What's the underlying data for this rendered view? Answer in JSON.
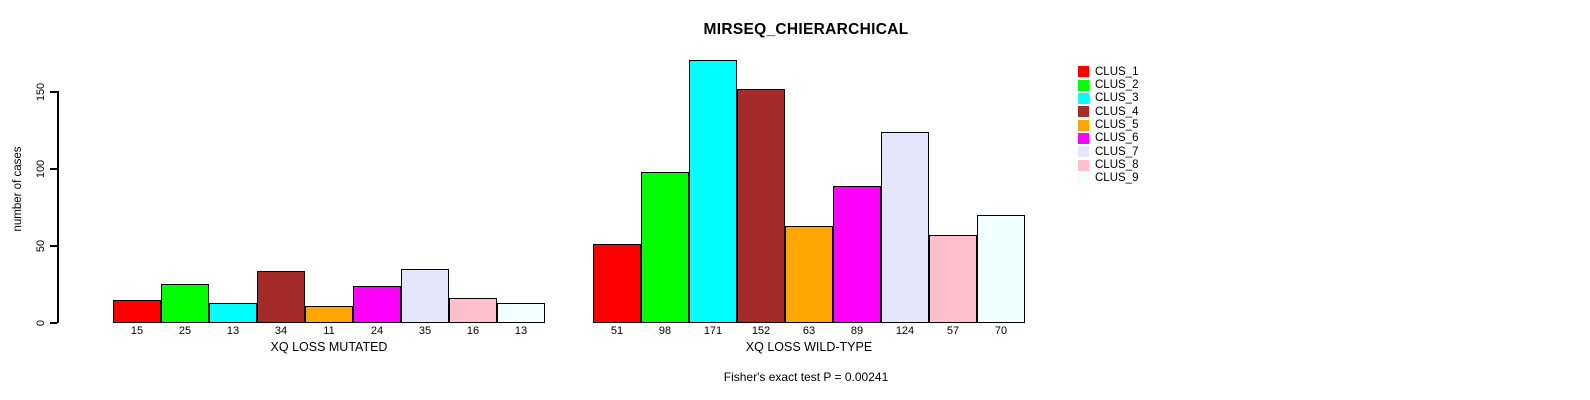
{
  "chart_data": {
    "type": "bar",
    "title": "MIRSEQ_CHIERARCHICAL",
    "ylabel": "number of cases",
    "yticks": [
      0,
      50,
      100,
      150
    ],
    "ylim": [
      0,
      175
    ],
    "grid": false,
    "legend_position": "right",
    "annotation": "Fisher's exact test P = 0.00241",
    "groups": [
      {
        "label": "XQ LOSS MUTATED",
        "values": [
          15,
          25,
          13,
          34,
          11,
          24,
          35,
          16,
          13
        ]
      },
      {
        "label": "XQ LOSS WILD-TYPE",
        "values": [
          51,
          98,
          171,
          152,
          63,
          89,
          124,
          57,
          70
        ]
      }
    ],
    "legend": [
      {
        "label": "CLUS_1",
        "color": "#FF0000"
      },
      {
        "label": "CLUS_2",
        "color": "#00FF00"
      },
      {
        "label": "CLUS_3",
        "color": "#00FFFF"
      },
      {
        "label": "CLUS_4",
        "color": "#A52A2A"
      },
      {
        "label": "CLUS_5",
        "color": "#FFA500"
      },
      {
        "label": "CLUS_6",
        "color": "#FF00FF"
      },
      {
        "label": "CLUS_7",
        "color": "#E6E6FA"
      },
      {
        "label": "CLUS_8",
        "color": "#FFC0CB"
      },
      {
        "label": "CLUS_9",
        "color": "#F0FFFF"
      }
    ]
  }
}
